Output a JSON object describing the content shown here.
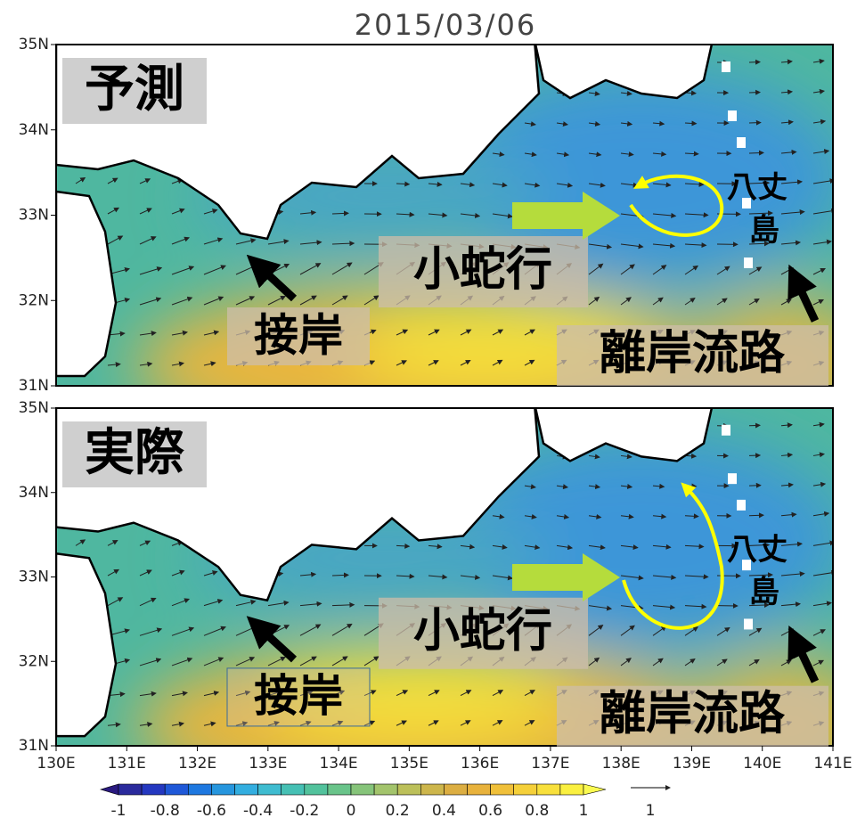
{
  "title": "2015/03/06",
  "panels": [
    {
      "label": "予測",
      "lat_ticks": [
        "35N",
        "34N",
        "33N",
        "32N",
        "31N"
      ],
      "annotations": {
        "approach": "接岸",
        "meander": "小蛇行",
        "offshore_path": "離岸流路",
        "island_line1": "八丈",
        "island_line2": "島"
      }
    },
    {
      "label": "実際",
      "lat_ticks": [
        "35N",
        "34N",
        "33N",
        "32N",
        "31N"
      ],
      "annotations": {
        "approach": "接岸",
        "meander": "小蛇行",
        "offshore_path": "離岸流路",
        "island_line1": "八丈",
        "island_line2": "島"
      }
    }
  ],
  "lon_ticks": [
    "130E",
    "131E",
    "132E",
    "133E",
    "134E",
    "135E",
    "136E",
    "137E",
    "138E",
    "139E",
    "140E",
    "141E"
  ],
  "colorbar": {
    "labels": [
      "-1",
      "-0.8",
      "-0.6",
      "-0.4",
      "-0.2",
      "0",
      "0.2",
      "0.4",
      "0.6",
      "0.8",
      "1"
    ],
    "vector_scale_label": "1"
  }
}
